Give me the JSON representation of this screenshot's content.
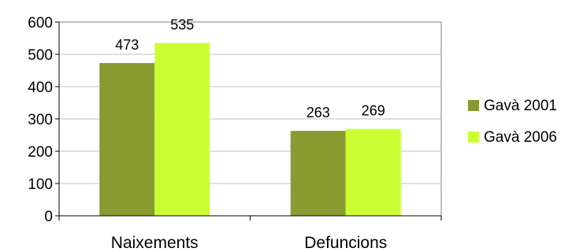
{
  "chart_data": {
    "type": "bar",
    "title": "",
    "xlabel": "",
    "ylabel": "",
    "categories": [
      "Naixements",
      "Defuncions"
    ],
    "series": [
      {
        "name": "Gavà 2001",
        "values": [
          473,
          263
        ],
        "color": "#889a30"
      },
      {
        "name": "Gavà 2006",
        "values": [
          535,
          269
        ],
        "color": "#ccff33"
      }
    ],
    "ylim": [
      0,
      600
    ],
    "yticks": [
      0,
      100,
      200,
      300,
      400,
      500,
      600
    ],
    "grid": true,
    "grid_color": "#c0c0c0",
    "legend_position": "right",
    "data_labels": true
  }
}
